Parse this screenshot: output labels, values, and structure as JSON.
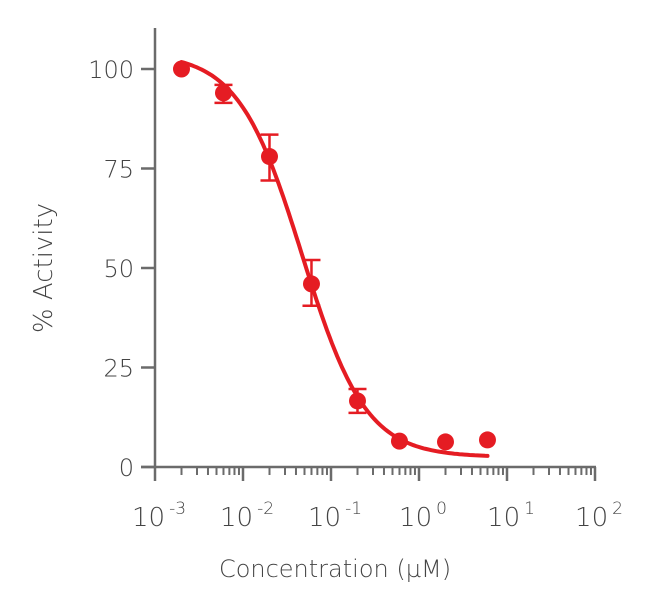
{
  "chart_data": {
    "type": "scatter",
    "title": "",
    "xlabel": "Concentration (µM)",
    "ylabel": "% Activity",
    "x_scale": "log",
    "xlim": [
      0.001,
      100
    ],
    "ylim": [
      0,
      110
    ],
    "x_ticks": [
      {
        "base": "10",
        "exp": "-3"
      },
      {
        "base": "10",
        "exp": "-2"
      },
      {
        "base": "10",
        "exp": "-1"
      },
      {
        "base": "10",
        "exp": "0"
      },
      {
        "base": "10",
        "exp": "1"
      },
      {
        "base": "10",
        "exp": "2"
      }
    ],
    "y_ticks": [
      0,
      25,
      50,
      75,
      100
    ],
    "grid": false,
    "color": "#e51c23",
    "points": [
      {
        "x": 0.002,
        "y": 100
      },
      {
        "x": 0.006,
        "y": 94,
        "err_low": 91.5,
        "err_high": 96
      },
      {
        "x": 0.02,
        "y": 78,
        "err_low": 72,
        "err_high": 83.5
      },
      {
        "x": 0.06,
        "y": 46,
        "err_low": 40.5,
        "err_high": 52
      },
      {
        "x": 0.2,
        "y": 16.6,
        "err_low": 13.6,
        "err_high": 19.6
      },
      {
        "x": 0.6,
        "y": 6.5
      },
      {
        "x": 2,
        "y": 6.3
      },
      {
        "x": 6,
        "y": 6.8
      }
    ],
    "fit": {
      "model": "four-parameter logistic",
      "top": 104,
      "bottom": 2.5,
      "ic50": 0.047,
      "hill": 1.2,
      "x_range": [
        0.002,
        6
      ]
    }
  }
}
